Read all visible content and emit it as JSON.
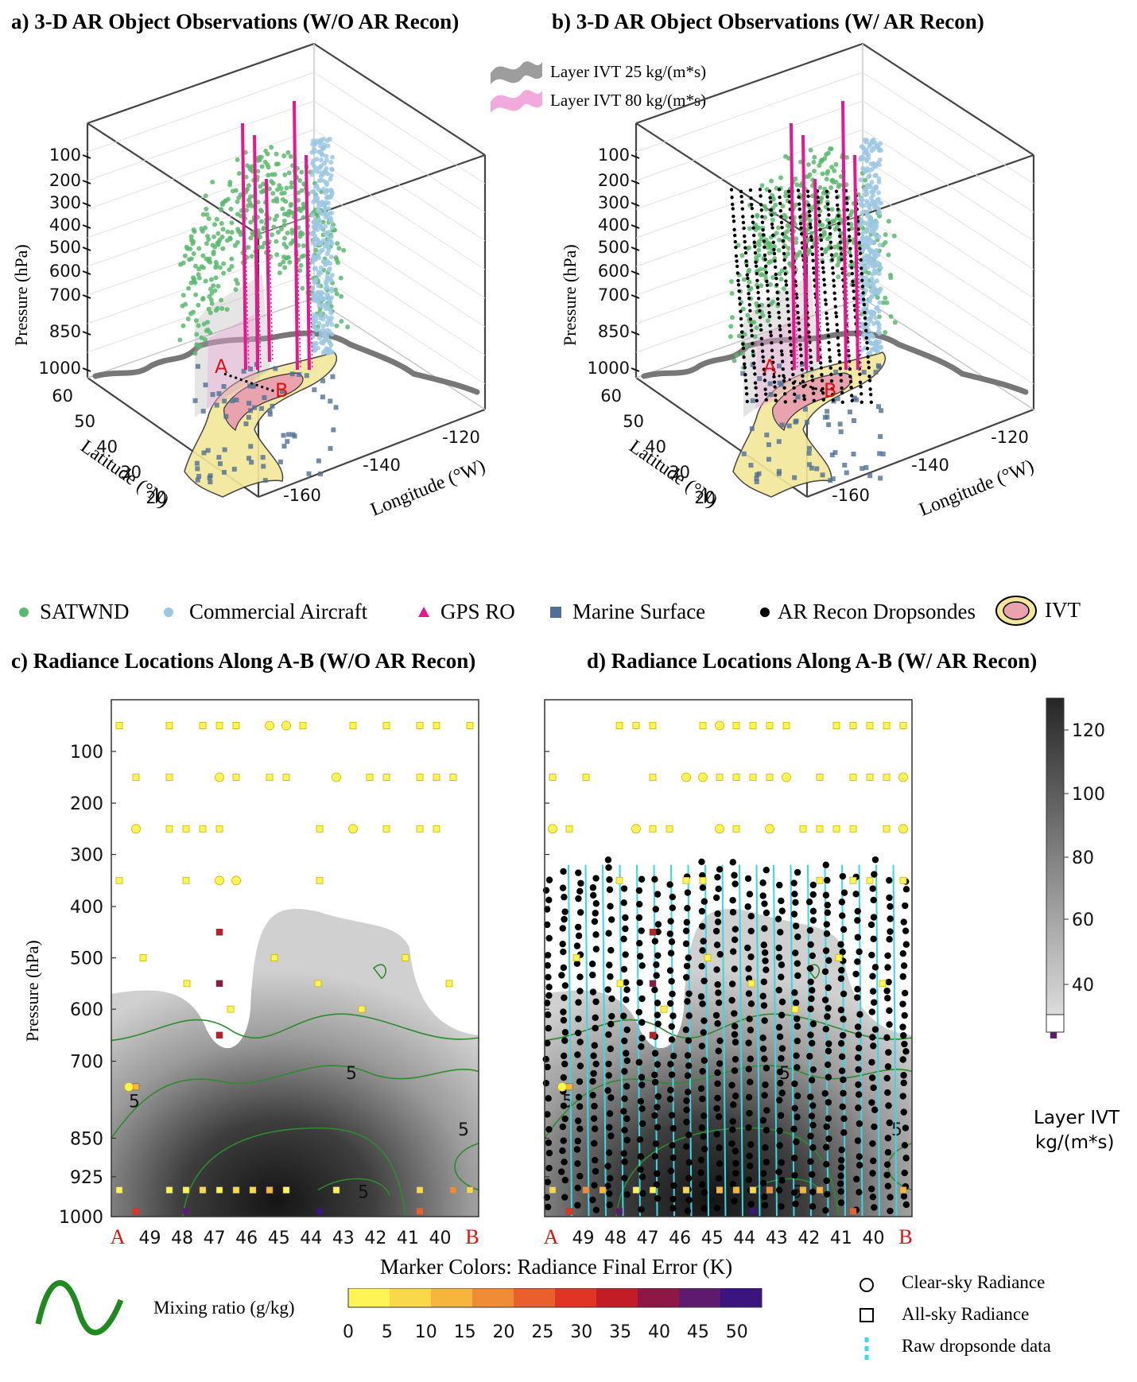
{
  "panels": {
    "a_title": "a) 3-D AR Object Observations  (W/O AR Recon)",
    "b_title": "b) 3-D AR Object Observations  (W/ AR Recon)",
    "c_title": "c) Radiance Locations Along A-B (W/O AR Recon)",
    "d_title": "d) Radiance Locations Along A-B (W/ AR Recon)"
  },
  "layer_legend": {
    "ivt25": "Layer IVT 25 kg/(m*s)",
    "ivt80": "Layer IVT 80 kg/(m*s)"
  },
  "obs_legend": {
    "satwnd": "SATWND",
    "aircraft": "Commercial Aircraft",
    "gpsro": "GPS RO",
    "marine": "Marine Surface",
    "dropsondes": "AR Recon Dropsondes",
    "ivt": "IVT"
  },
  "axes3d": {
    "pressure_label": "Pressure (hPa)",
    "latitude_label": "Latitude (°N)",
    "longitude_label": "Longitude (°W)",
    "pressure_ticks": [
      "100",
      "200",
      "300",
      "400",
      "500",
      "600",
      "700",
      "850",
      "1000"
    ],
    "latitude_ticks": [
      "60",
      "50",
      "40",
      "30",
      "20"
    ],
    "longitude_ticks": [
      "-160",
      "-140",
      "-120"
    ],
    "point_a": "A",
    "point_b": "B"
  },
  "chart_data": [
    {
      "type": "heatmap",
      "panel": "c",
      "title": "c) Radiance Locations Along A-B (W/O AR Recon)",
      "ylabel": "Pressure (hPa)",
      "x": [
        "A",
        "49",
        "48",
        "47",
        "46",
        "45",
        "44",
        "43",
        "42",
        "41",
        "40",
        "B"
      ],
      "y_ticks": [
        100,
        200,
        300,
        400,
        500,
        600,
        700,
        850,
        925,
        1000
      ],
      "ylim": [
        1000,
        0
      ],
      "contour_label": "5",
      "colorbar": {
        "label": "Layer IVT kg/(m*s)",
        "ticks": [
          40,
          60,
          80,
          100,
          120
        ]
      }
    },
    {
      "type": "heatmap",
      "panel": "d",
      "title": "d) Radiance Locations Along A-B (W/ AR Recon)",
      "x": [
        "A",
        "49",
        "48",
        "47",
        "46",
        "45",
        "44",
        "43",
        "42",
        "41",
        "40",
        "B"
      ],
      "y_ticks": [
        100,
        200,
        300,
        400,
        500,
        600,
        700,
        850,
        925,
        1000
      ],
      "ylim": [
        1000,
        0
      ],
      "contour_label": "5"
    }
  ],
  "colorbar_ivt": {
    "label_line1": "Layer IVT",
    "label_line2": "kg/(m*s)",
    "ticks": [
      "40",
      "60",
      "80",
      "100",
      "120"
    ]
  },
  "bottom_legend": {
    "mixing_ratio": "Mixing ratio (g/kg)",
    "marker_colors_title": "Marker Colors:  Radiance Final Error (K)",
    "error_ticks": [
      "0",
      "5",
      "10",
      "15",
      "20",
      "25",
      "30",
      "35",
      "40",
      "45",
      "50"
    ],
    "clear_sky": "Clear-sky Radiance",
    "all_sky": "All-sky Radiance",
    "raw_dropsonde": "Raw dropsonde data"
  },
  "colors": {
    "satwnd": "#5cb870",
    "aircraft": "#9ec8e2",
    "gpsro": "#e8168f",
    "marine": "#4f6f95",
    "ivt_fill": "#f3e79a",
    "ivt_core": "#e9a3ae",
    "mixing_ratio": "#2e8b2e",
    "dropsonde_line": "#37d8ea",
    "point_label": "#e01010"
  }
}
